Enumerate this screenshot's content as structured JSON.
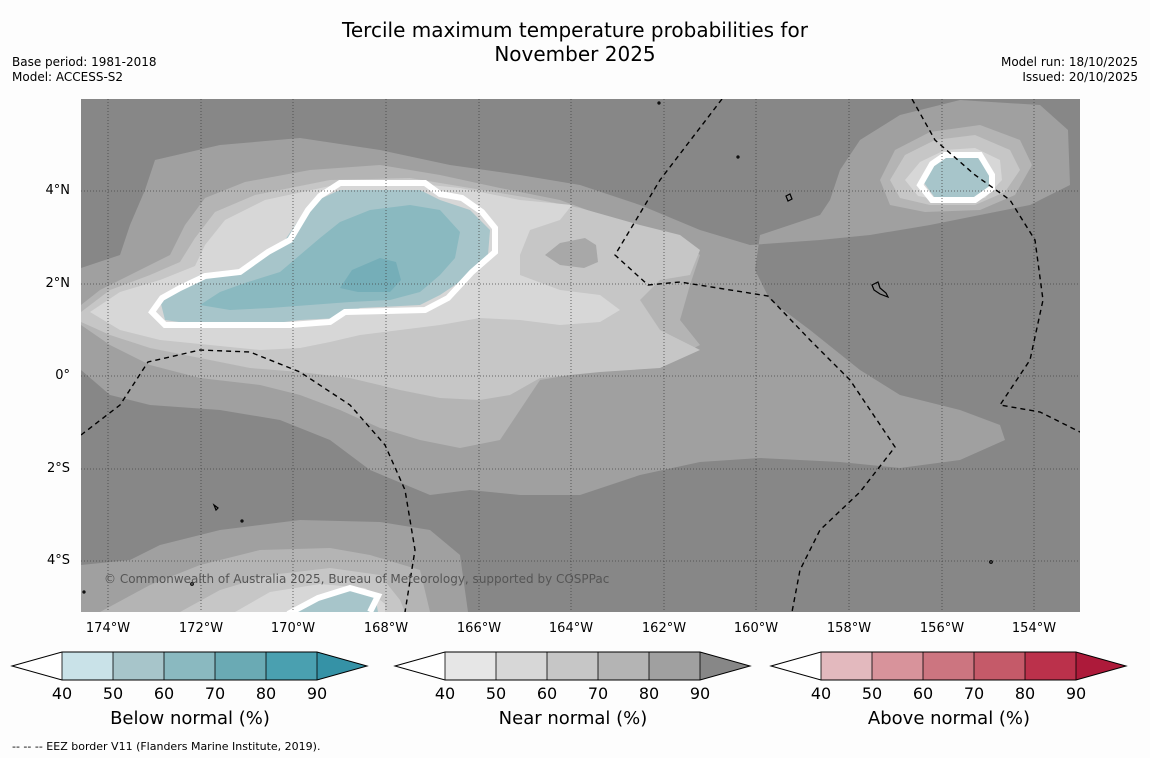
{
  "title": {
    "line1": "Tercile maximum temperature probabilities for",
    "line2": "November 2025"
  },
  "meta": {
    "base_period": "Base period: 1981-2018",
    "model": "Model: ACCESS-S2",
    "model_run": "Model run: 18/10/2025",
    "issued": "Issued: 20/10/2025"
  },
  "map": {
    "y_ticks": [
      "4°N",
      "2°N",
      "0°",
      "2°S",
      "4°S"
    ],
    "x_ticks": [
      "174°W",
      "172°W",
      "170°W",
      "168°W",
      "166°W",
      "164°W",
      "162°W",
      "160°W",
      "158°W",
      "156°W",
      "154°W"
    ],
    "copyright": "© Commonwealth of Australia 2025, Bureau of Meteorology, supported by COSPPac"
  },
  "colorbars": [
    {
      "label": "Below normal (%)",
      "ticks": [
        "40",
        "50",
        "60",
        "70",
        "80",
        "90"
      ],
      "colors": [
        "#ffffff",
        "#c9e2e8",
        "#a7c5ca",
        "#8ab9c0",
        "#6aaab4",
        "#4aa0b0",
        "#3592a6"
      ]
    },
    {
      "label": "Near normal (%)",
      "ticks": [
        "40",
        "50",
        "60",
        "70",
        "80",
        "90"
      ],
      "colors": [
        "#ffffff",
        "#e6e6e6",
        "#d7d7d7",
        "#c6c6c6",
        "#b4b4b4",
        "#a0a0a0",
        "#878787"
      ]
    },
    {
      "label": "Above normal (%)",
      "ticks": [
        "40",
        "50",
        "60",
        "70",
        "80",
        "90"
      ],
      "colors": [
        "#ffffff",
        "#e3b9be",
        "#d8939b",
        "#cc7580",
        "#c55a69",
        "#bb314b",
        "#ad1a3a"
      ]
    }
  ],
  "footnote": "--  --  -- EEZ border V11 (Flanders Marine Institute, 2019)."
}
